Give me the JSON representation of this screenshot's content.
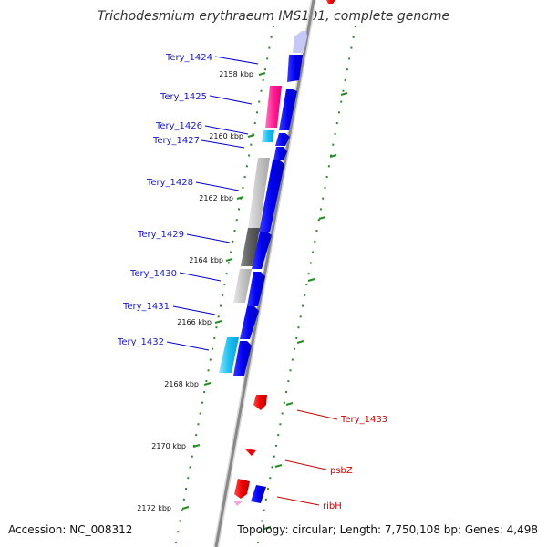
{
  "title": "Trichodesmium erythraeum IMS101, complete genome",
  "accession": "Accession: NC_008312",
  "topology": "Topology: circular; Length: 7,750,108 bp; Genes: 4,498",
  "kbp_labels": {
    "k2158": "2158 kbp",
    "k2160": "2160 kbp",
    "k2162": "2162 kbp",
    "k2164": "2164 kbp",
    "k2166": "2166 kbp",
    "k2168": "2168 kbp",
    "k2170": "2170 kbp",
    "k2172": "2172 kbp"
  },
  "genes": {
    "g1424": "Tery_1424",
    "g1425": "Tery_1425",
    "g1426": "Tery_1426",
    "g1427": "Tery_1427",
    "g1428": "Tery_1428",
    "g1429": "Tery_1429",
    "g1430": "Tery_1430",
    "g1431": "Tery_1431",
    "g1432": "Tery_1432",
    "g1433": "Tery_1433",
    "psbZ": "psbZ",
    "ribH": "ribH"
  },
  "colors": {
    "forward_cds": "#0000ee",
    "reverse_cds": "#ee0000",
    "gene_label_forward": "#1a1acc",
    "gene_label_reverse": "#cc0000",
    "backbone": "#888888",
    "ticks": "#2a8a2a",
    "blast_pink": "#ff2d96",
    "blast_cyan": "#22c7f0",
    "blast_gray_light": "#c8c8c8",
    "blast_gray_dark": "#6a6a6a"
  }
}
